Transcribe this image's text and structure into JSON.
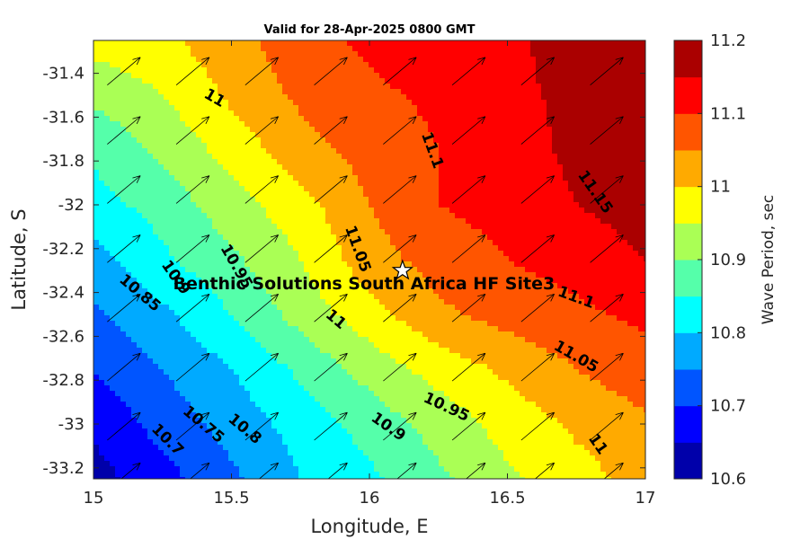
{
  "chart_data": {
    "type": "heatmap",
    "title": "Valid for 28-Apr-2025 0800 GMT",
    "xlabel": "Longitude, E",
    "ylabel": "Latitude, S",
    "xlim": [
      15,
      17
    ],
    "ylim": [
      -33.25,
      -31.25
    ],
    "x_ticks": [
      "15",
      "15.5",
      "16",
      "16.5",
      "17"
    ],
    "y_ticks": [
      "-31.4",
      "-31.6",
      "-31.8",
      "-32",
      "-32.2",
      "-32.4",
      "-32.6",
      "-32.8",
      "-33",
      "-33.2"
    ],
    "colorbar": {
      "label": "Wave Period, sec",
      "range": [
        10.6,
        11.2
      ],
      "ticks": [
        "10.6",
        "10.7",
        "10.8",
        "10.9",
        "11",
        "11.1",
        "11.2"
      ],
      "levels": [
        10.6,
        10.65,
        10.7,
        10.75,
        10.8,
        10.85,
        10.9,
        10.95,
        11.0,
        11.05,
        11.1,
        11.15,
        11.2
      ],
      "colors": [
        "#0000aa",
        "#0000ff",
        "#0055ff",
        "#00aaff",
        "#00ffff",
        "#55ffaa",
        "#aaff55",
        "#ffff00",
        "#ffaa00",
        "#ff5500",
        "#ff0000",
        "#aa0000"
      ]
    },
    "field": {
      "x": [
        15,
        15.25,
        15.5,
        15.75,
        16,
        16.25,
        16.5,
        16.75,
        17
      ],
      "y": [
        -31.25,
        -31.5,
        -31.75,
        -32,
        -32.25,
        -32.5,
        -32.75,
        -33,
        -33.25
      ],
      "z": [
        [
          10.97,
          10.99,
          11.03,
          11.08,
          11.11,
          11.13,
          11.14,
          11.17,
          11.19
        ],
        [
          10.91,
          10.95,
          11.01,
          11.06,
          11.09,
          11.11,
          11.14,
          11.16,
          11.19
        ],
        [
          10.86,
          10.91,
          10.97,
          11.03,
          11.07,
          11.1,
          11.13,
          11.16,
          11.18
        ],
        [
          10.83,
          10.87,
          10.93,
          10.98,
          11.05,
          11.1,
          11.12,
          11.15,
          11.17
        ],
        [
          10.78,
          10.84,
          10.89,
          10.95,
          11.03,
          11.07,
          11.1,
          11.12,
          11.15
        ],
        [
          10.74,
          10.79,
          10.85,
          10.92,
          10.98,
          11.04,
          11.07,
          11.09,
          11.11
        ],
        [
          10.7,
          10.75,
          10.8,
          10.86,
          10.92,
          10.97,
          11.01,
          11.05,
          11.08
        ],
        [
          10.66,
          10.72,
          10.77,
          10.82,
          10.87,
          10.92,
          10.97,
          11.01,
          11.04
        ],
        [
          10.63,
          10.68,
          10.74,
          10.8,
          10.84,
          10.89,
          10.94,
          10.98,
          11.02
        ]
      ]
    },
    "contour_labels": [
      {
        "text": "11",
        "lon": 15.44,
        "lat": -31.51,
        "angle": 30
      },
      {
        "text": "11.1",
        "lon": 16.23,
        "lat": -31.75,
        "angle": 70
      },
      {
        "text": "11.15",
        "lon": 16.82,
        "lat": -31.94,
        "angle": 55
      },
      {
        "text": "11.05",
        "lon": 15.96,
        "lat": -32.2,
        "angle": 70
      },
      {
        "text": "10.95",
        "lon": 15.52,
        "lat": -32.28,
        "angle": 60
      },
      {
        "text": "10.9",
        "lon": 15.3,
        "lat": -32.33,
        "angle": 55
      },
      {
        "text": "10.85",
        "lon": 15.17,
        "lat": -32.4,
        "angle": 40
      },
      {
        "text": "11.1",
        "lon": 16.75,
        "lat": -32.42,
        "angle": 20
      },
      {
        "text": "11",
        "lon": 15.88,
        "lat": -32.52,
        "angle": 40
      },
      {
        "text": "11.05",
        "lon": 16.75,
        "lat": -32.69,
        "angle": 30
      },
      {
        "text": "10.95",
        "lon": 16.28,
        "lat": -32.92,
        "angle": 25
      },
      {
        "text": "10.9",
        "lon": 16.07,
        "lat": -33.01,
        "angle": 35
      },
      {
        "text": "10.75",
        "lon": 15.4,
        "lat": -33.0,
        "angle": 40
      },
      {
        "text": "10.8",
        "lon": 15.55,
        "lat": -33.02,
        "angle": 40
      },
      {
        "text": "10.7",
        "lon": 15.27,
        "lat": -33.07,
        "angle": 45
      },
      {
        "text": "11",
        "lon": 16.83,
        "lat": -33.09,
        "angle": 55
      }
    ],
    "site": {
      "name": "Benthic Solutions South Africa HF Site3",
      "lon": 16.12,
      "lat": -32.3,
      "marker": "star"
    },
    "vectors": {
      "description_grid_lon": [
        15.05,
        15.3,
        15.55,
        15.8,
        16.05,
        16.3,
        16.55,
        16.8
      ],
      "description_grid_lat": [
        -31.38,
        -31.65,
        -31.92,
        -32.19,
        -32.46,
        -32.73,
        -33.0,
        -33.23
      ],
      "direction_deg": 40
    }
  }
}
